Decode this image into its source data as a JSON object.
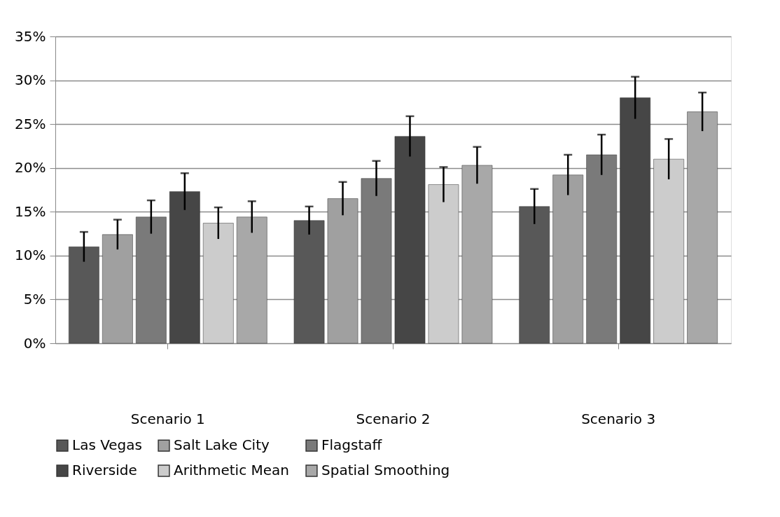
{
  "chart_data": {
    "type": "bar",
    "categories": [
      "Scenario 1",
      "Scenario 2",
      "Scenario 3"
    ],
    "series": [
      {
        "name": "Las Vegas",
        "color": "#585858",
        "values": [
          11.0,
          14.0,
          15.6
        ],
        "errors": [
          1.7,
          1.6,
          2.0
        ]
      },
      {
        "name": "Salt Lake City",
        "color": "#a0a0a0",
        "values": [
          12.4,
          16.5,
          19.2
        ],
        "errors": [
          1.7,
          1.9,
          2.3
        ]
      },
      {
        "name": "Flagstaff",
        "color": "#7a7a7a",
        "values": [
          14.4,
          18.8,
          21.5
        ],
        "errors": [
          1.9,
          2.0,
          2.3
        ]
      },
      {
        "name": "Riverside",
        "color": "#464646",
        "values": [
          17.3,
          23.6,
          28.0
        ],
        "errors": [
          2.1,
          2.3,
          2.4
        ]
      },
      {
        "name": "Arithmetic Mean",
        "color": "#cccccc",
        "values": [
          13.7,
          18.1,
          21.0
        ],
        "errors": [
          1.8,
          2.0,
          2.3
        ]
      },
      {
        "name": "Spatial Smoothing",
        "color": "#a8a8a8",
        "values": [
          14.4,
          20.3,
          26.4
        ],
        "errors": [
          1.8,
          2.1,
          2.2
        ]
      }
    ],
    "ylim": [
      0,
      35
    ],
    "yticks": [
      {
        "value": 0,
        "label": "0%"
      },
      {
        "value": 5,
        "label": "5%"
      },
      {
        "value": 10,
        "label": "10%"
      },
      {
        "value": 15,
        "label": "15%"
      },
      {
        "value": 20,
        "label": "20%"
      },
      {
        "value": 25,
        "label": "25%"
      },
      {
        "value": 30,
        "label": "30%"
      },
      {
        "value": 35,
        "label": "35%"
      }
    ],
    "grid": "y",
    "legend": "bottom"
  }
}
